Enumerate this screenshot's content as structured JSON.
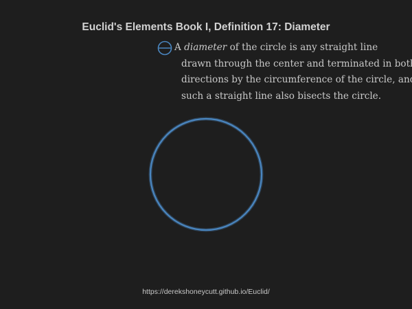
{
  "title": "Euclid's Elements Book I, Definition 17: Diameter",
  "definition": {
    "icon": "circle-with-diameter-icon",
    "lead": "A",
    "term": "diameter",
    "line1_rest": "of the circle is any straight line",
    "line2": "drawn through the center and terminated in both",
    "line3": "directions by the circumference of the circle, and",
    "line4": "such a straight line also bisects the circle."
  },
  "colors": {
    "background": "#1e1e1e",
    "circle_stroke": "#4a86c0",
    "title_text": "#d2d2d2",
    "body_text": "#c9c9c9"
  },
  "footer": {
    "url": "https://derekshoneycutt.github.io/Euclid/"
  }
}
